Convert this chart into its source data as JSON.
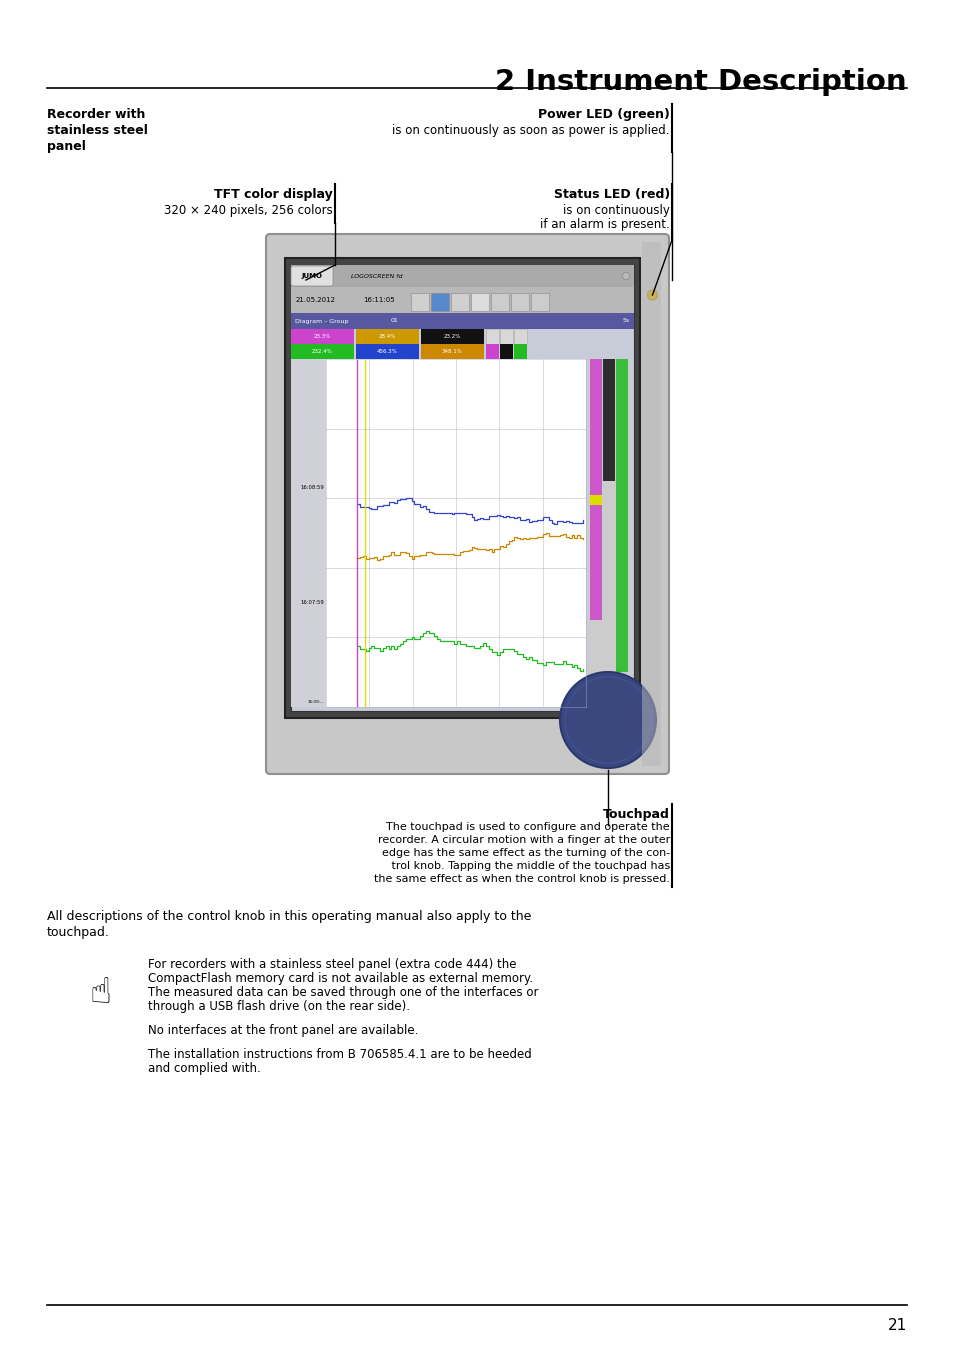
{
  "title": "2 Instrument Description",
  "bg_color": "#ffffff",
  "page_number": "21",
  "recorder_label_lines": [
    "Recorder with",
    "stainless steel",
    "panel"
  ],
  "power_led_label": "Power LED (green)",
  "power_led_desc": "is on continuously as soon as power is applied.",
  "tft_label": "TFT color display",
  "tft_desc": "320 × 240 pixels, 256 colors",
  "status_led_label": "Status LED (red)",
  "status_led_desc1": "is on continuously",
  "status_led_desc2": "if an alarm is present.",
  "touchpad_label": "Touchpad",
  "touchpad_desc_lines": [
    "The touchpad is used to configure and operate the",
    "recorder. A circular motion with a finger at the outer",
    "edge has the same effect as the turning of the con-",
    "   trol knob. Tapping the middle of the touchpad has",
    "the same effect as when the control knob is pressed."
  ],
  "body_text_line1": "All descriptions of the control knob in this operating manual also apply to the",
  "body_text_line2": "touchpad.",
  "note_para1_lines": [
    "For recorders with a stainless steel panel (extra code 444) the",
    "CompactFlash memory card is not available as external memory.",
    "The measured data can be saved through one of the interfaces or",
    "through a USB flash drive (on the rear side)."
  ],
  "note_para2": "No interfaces at the front panel are available.",
  "note_para3_lines": [
    "The installation instructions from B 706585.4.1 are to be heeded",
    "and complied with."
  ],
  "panel_color": "#c0c0c0",
  "panel_edge_color": "#909090",
  "screen_bg": "#e8e8f0",
  "touchpad_color": "#3a4880",
  "led_color": "#ddaa00"
}
